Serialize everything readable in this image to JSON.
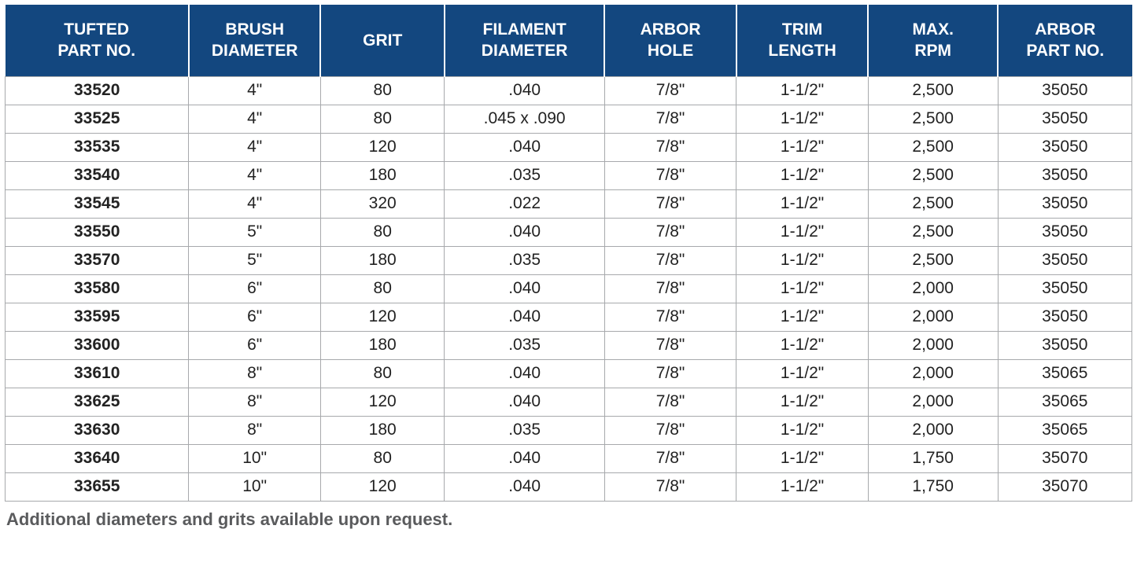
{
  "table": {
    "header_bg": "#13477f",
    "header_fg": "#ffffff",
    "cell_border": "#a7a9ac",
    "cell_fg": "#222222",
    "footnote_fg": "#5a5b5d",
    "header_fontsize": 21,
    "cell_fontsize": 21,
    "footnote_fontsize": 22,
    "col_widths_pct": [
      16.3,
      11.7,
      11.0,
      14.2,
      11.7,
      11.7,
      11.5,
      11.9
    ],
    "columns": [
      "TUFTED\nPART NO.",
      "BRUSH\nDIAMETER",
      "GRIT",
      "FILAMENT\nDIAMETER",
      "ARBOR\nHOLE",
      "TRIM\nLENGTH",
      "MAX.\nRPM",
      "ARBOR\nPART NO."
    ],
    "rows": [
      [
        "33520",
        "4\"",
        "80",
        ".040",
        "7/8\"",
        "1-1/2\"",
        "2,500",
        "35050"
      ],
      [
        "33525",
        "4\"",
        "80",
        ".045 x .090",
        "7/8\"",
        "1-1/2\"",
        "2,500",
        "35050"
      ],
      [
        "33535",
        "4\"",
        "120",
        ".040",
        "7/8\"",
        "1-1/2\"",
        "2,500",
        "35050"
      ],
      [
        "33540",
        "4\"",
        "180",
        ".035",
        "7/8\"",
        "1-1/2\"",
        "2,500",
        "35050"
      ],
      [
        "33545",
        "4\"",
        "320",
        ".022",
        "7/8\"",
        "1-1/2\"",
        "2,500",
        "35050"
      ],
      [
        "33550",
        "5\"",
        "80",
        ".040",
        "7/8\"",
        "1-1/2\"",
        "2,500",
        "35050"
      ],
      [
        "33570",
        "5\"",
        "180",
        ".035",
        "7/8\"",
        "1-1/2\"",
        "2,500",
        "35050"
      ],
      [
        "33580",
        "6\"",
        "80",
        ".040",
        "7/8\"",
        "1-1/2\"",
        "2,000",
        "35050"
      ],
      [
        "33595",
        "6\"",
        "120",
        ".040",
        "7/8\"",
        "1-1/2\"",
        "2,000",
        "35050"
      ],
      [
        "33600",
        "6\"",
        "180",
        ".035",
        "7/8\"",
        "1-1/2\"",
        "2,000",
        "35050"
      ],
      [
        "33610",
        "8\"",
        "80",
        ".040",
        "7/8\"",
        "1-1/2\"",
        "2,000",
        "35065"
      ],
      [
        "33625",
        "8\"",
        "120",
        ".040",
        "7/8\"",
        "1-1/2\"",
        "2,000",
        "35065"
      ],
      [
        "33630",
        "8\"",
        "180",
        ".035",
        "7/8\"",
        "1-1/2\"",
        "2,000",
        "35065"
      ],
      [
        "33640",
        "10\"",
        "80",
        ".040",
        "7/8\"",
        "1-1/2\"",
        "1,750",
        "35070"
      ],
      [
        "33655",
        "10\"",
        "120",
        ".040",
        "7/8\"",
        "1-1/2\"",
        "1,750",
        "35070"
      ]
    ]
  },
  "footnote": "Additional diameters and grits available upon request."
}
